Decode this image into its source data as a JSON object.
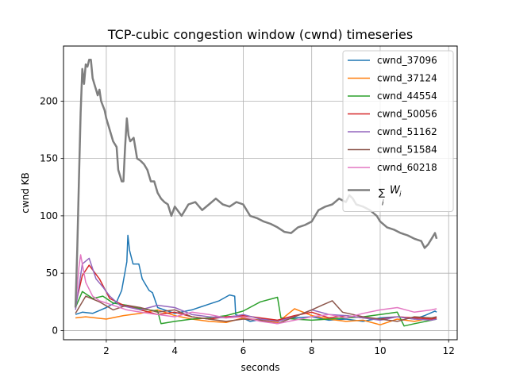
{
  "chart_data": {
    "type": "line",
    "title": "TCP-cubic congestion window (cwnd) timeseries",
    "xlabel": "seconds",
    "ylabel": "cwnd KB",
    "xlim": [
      0.75,
      12.25
    ],
    "ylim": [
      -8,
      248
    ],
    "x_ticks": [
      2,
      4,
      6,
      8,
      10,
      12
    ],
    "y_ticks": [
      0,
      50,
      100,
      150,
      200
    ],
    "grid": true,
    "legend_position": "top-right",
    "series": [
      {
        "name": "cwnd_37096",
        "color": "#1f77b4",
        "width": 1.5,
        "x": [
          1.1,
          1.3,
          1.6,
          2.0,
          2.3,
          2.45,
          2.6,
          2.63,
          2.68,
          2.78,
          2.95,
          3.05,
          3.15,
          3.25,
          3.35,
          3.5,
          4.0,
          4.5,
          5.0,
          5.3,
          5.6,
          5.75,
          5.78,
          6.2,
          6.6,
          7.0,
          7.5,
          8.0,
          8.5,
          9.0,
          9.5,
          10.0,
          10.5,
          11.0,
          11.3,
          11.6,
          11.65
        ],
        "y": [
          14,
          16,
          15,
          20,
          25,
          35,
          60,
          83,
          70,
          58,
          58,
          45,
          40,
          35,
          33,
          20,
          15,
          18,
          23,
          26,
          31,
          30,
          14,
          8,
          10,
          9,
          11,
          12,
          9,
          10,
          8,
          11,
          12,
          10,
          13,
          17,
          16
        ]
      },
      {
        "name": "cwnd_37124",
        "color": "#ff7f0e",
        "width": 1.5,
        "x": [
          1.1,
          1.4,
          2.0,
          2.5,
          3.0,
          3.5,
          4.0,
          4.5,
          5.0,
          5.5,
          6.0,
          6.5,
          7.0,
          7.5,
          8.0,
          8.5,
          9.0,
          9.5,
          10.0,
          10.5,
          11.0,
          11.5,
          11.65
        ],
        "y": [
          11,
          12,
          10,
          13,
          15,
          18,
          13,
          10,
          8,
          7,
          11,
          9,
          7,
          19,
          13,
          10,
          8,
          9,
          5,
          10,
          8,
          11,
          10
        ]
      },
      {
        "name": "cwnd_44554",
        "color": "#2ca02c",
        "width": 1.5,
        "x": [
          1.1,
          1.3,
          1.6,
          1.9,
          2.2,
          2.6,
          3.0,
          3.5,
          3.6,
          4.0,
          4.5,
          5.0,
          5.5,
          6.0,
          6.5,
          7.0,
          7.1,
          7.5,
          8.0,
          8.5,
          9.0,
          9.5,
          10.0,
          10.5,
          10.7,
          11.0,
          11.5,
          11.65
        ],
        "y": [
          20,
          34,
          28,
          30,
          24,
          22,
          19,
          17,
          6,
          8,
          10,
          11,
          13,
          17,
          25,
          29,
          11,
          10,
          9,
          10,
          11,
          12,
          14,
          16,
          4,
          6,
          9,
          10
        ]
      },
      {
        "name": "cwnd_50056",
        "color": "#d62728",
        "width": 1.5,
        "x": [
          1.1,
          1.3,
          1.5,
          1.8,
          2.1,
          2.5,
          3.0,
          3.5,
          4.0,
          4.5,
          5.0,
          5.5,
          6.0,
          6.5,
          7.0,
          7.5,
          8.0,
          8.5,
          9.0,
          9.5,
          10.0,
          10.5,
          11.0,
          11.5,
          11.65
        ],
        "y": [
          22,
          48,
          57,
          45,
          28,
          22,
          18,
          14,
          16,
          12,
          10,
          12,
          13,
          11,
          9,
          13,
          16,
          11,
          13,
          11,
          10,
          12,
          11,
          10,
          11
        ]
      },
      {
        "name": "cwnd_51162",
        "color": "#9467bd",
        "width": 1.5,
        "x": [
          1.1,
          1.3,
          1.5,
          1.7,
          1.9,
          2.1,
          2.4,
          3.0,
          3.5,
          4.0,
          4.5,
          5.0,
          5.5,
          6.0,
          6.5,
          7.0,
          7.5,
          8.0,
          8.5,
          9.0,
          9.5,
          10.0,
          10.5,
          11.0,
          11.5,
          11.65
        ],
        "y": [
          18,
          58,
          63,
          45,
          38,
          30,
          22,
          18,
          22,
          20,
          14,
          12,
          11,
          14,
          10,
          8,
          12,
          18,
          14,
          13,
          11,
          9,
          12,
          10,
          9,
          10
        ]
      },
      {
        "name": "cwnd_51584",
        "color": "#8c564b",
        "width": 1.5,
        "x": [
          1.1,
          1.4,
          1.8,
          2.2,
          2.6,
          3.0,
          3.5,
          4.0,
          4.5,
          5.0,
          5.5,
          6.0,
          6.5,
          7.0,
          7.5,
          8.0,
          8.3,
          8.6,
          8.9,
          9.2,
          9.5,
          10.0,
          10.5,
          11.0,
          11.5,
          11.65
        ],
        "y": [
          15,
          30,
          25,
          18,
          22,
          20,
          16,
          18,
          12,
          10,
          8,
          10,
          9,
          6,
          12,
          18,
          22,
          26,
          16,
          14,
          12,
          10,
          8,
          12,
          11,
          12
        ]
      },
      {
        "name": "cwnd_60218",
        "color": "#e377c2",
        "width": 1.5,
        "x": [
          1.1,
          1.2,
          1.25,
          1.4,
          1.6,
          1.8,
          2.0,
          2.3,
          2.6,
          3.0,
          3.5,
          4.0,
          4.5,
          5.0,
          5.5,
          6.0,
          6.5,
          7.0,
          7.5,
          8.0,
          8.5,
          9.0,
          9.5,
          10.0,
          10.5,
          11.0,
          11.5,
          11.65
        ],
        "y": [
          20,
          55,
          66,
          42,
          30,
          26,
          24,
          21,
          18,
          16,
          14,
          12,
          16,
          14,
          11,
          12,
          8,
          6,
          9,
          12,
          14,
          11,
          15,
          18,
          20,
          16,
          18,
          19
        ]
      },
      {
        "name": "∑Wᵢ",
        "legend_sum": "∑",
        "legend_sub": "i",
        "legend_var": "W",
        "legend_var_sub": "i",
        "color": "#7f7f7f",
        "width": 2.5,
        "x": [
          1.1,
          1.15,
          1.2,
          1.25,
          1.3,
          1.35,
          1.4,
          1.45,
          1.5,
          1.55,
          1.6,
          1.65,
          1.7,
          1.75,
          1.8,
          1.85,
          1.9,
          1.95,
          2.0,
          2.1,
          2.2,
          2.3,
          2.35,
          2.4,
          2.45,
          2.5,
          2.55,
          2.6,
          2.65,
          2.7,
          2.8,
          2.9,
          3.0,
          3.1,
          3.2,
          3.3,
          3.4,
          3.5,
          3.6,
          3.7,
          3.8,
          3.9,
          4.0,
          4.2,
          4.4,
          4.6,
          4.8,
          5.0,
          5.2,
          5.4,
          5.6,
          5.8,
          6.0,
          6.2,
          6.4,
          6.6,
          6.8,
          7.0,
          7.2,
          7.4,
          7.6,
          7.8,
          8.0,
          8.2,
          8.4,
          8.6,
          8.8,
          9.0,
          9.1,
          9.2,
          9.3,
          9.5,
          9.7,
          9.9,
          10.0,
          10.2,
          10.4,
          10.6,
          10.8,
          11.0,
          11.2,
          11.3,
          11.4,
          11.5,
          11.6,
          11.65
        ],
        "y": [
          20,
          70,
          130,
          190,
          228,
          215,
          232,
          230,
          236,
          236,
          220,
          215,
          210,
          205,
          210,
          200,
          196,
          192,
          185,
          175,
          165,
          160,
          140,
          135,
          130,
          130,
          160,
          185,
          170,
          165,
          168,
          150,
          148,
          145,
          140,
          130,
          130,
          120,
          115,
          112,
          110,
          100,
          108,
          100,
          110,
          112,
          105,
          110,
          115,
          110,
          108,
          112,
          110,
          100,
          98,
          95,
          93,
          90,
          86,
          85,
          90,
          92,
          95,
          105,
          108,
          110,
          115,
          112,
          118,
          115,
          110,
          108,
          105,
          100,
          95,
          90,
          88,
          85,
          83,
          80,
          78,
          72,
          75,
          80,
          85,
          80
        ]
      }
    ]
  }
}
